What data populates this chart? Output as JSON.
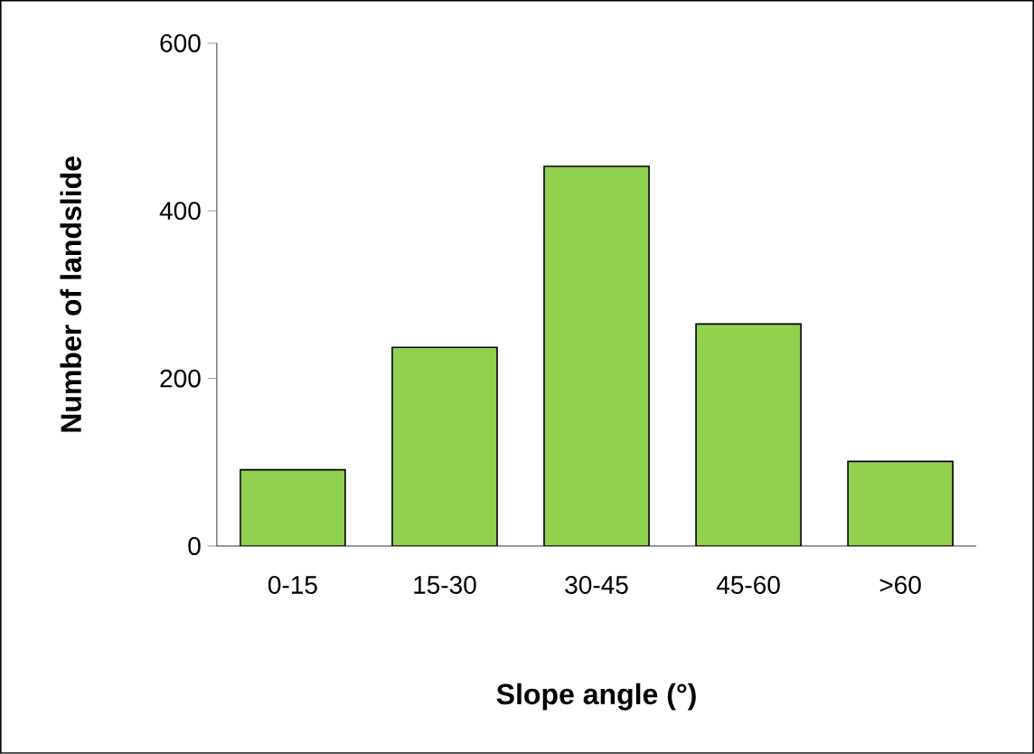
{
  "chart_data": {
    "type": "bar",
    "xlabel": "Slope angle (°)",
    "ylabel": "Number of landslide",
    "categories": [
      "0-15",
      "15-30",
      "30-45",
      "45-60",
      ">60"
    ],
    "values": [
      91,
      237,
      453,
      265,
      101
    ],
    "color": "#92d050",
    "ylim": [
      0,
      600
    ],
    "yticks": [
      0,
      200,
      400,
      600
    ],
    "grid": false
  }
}
